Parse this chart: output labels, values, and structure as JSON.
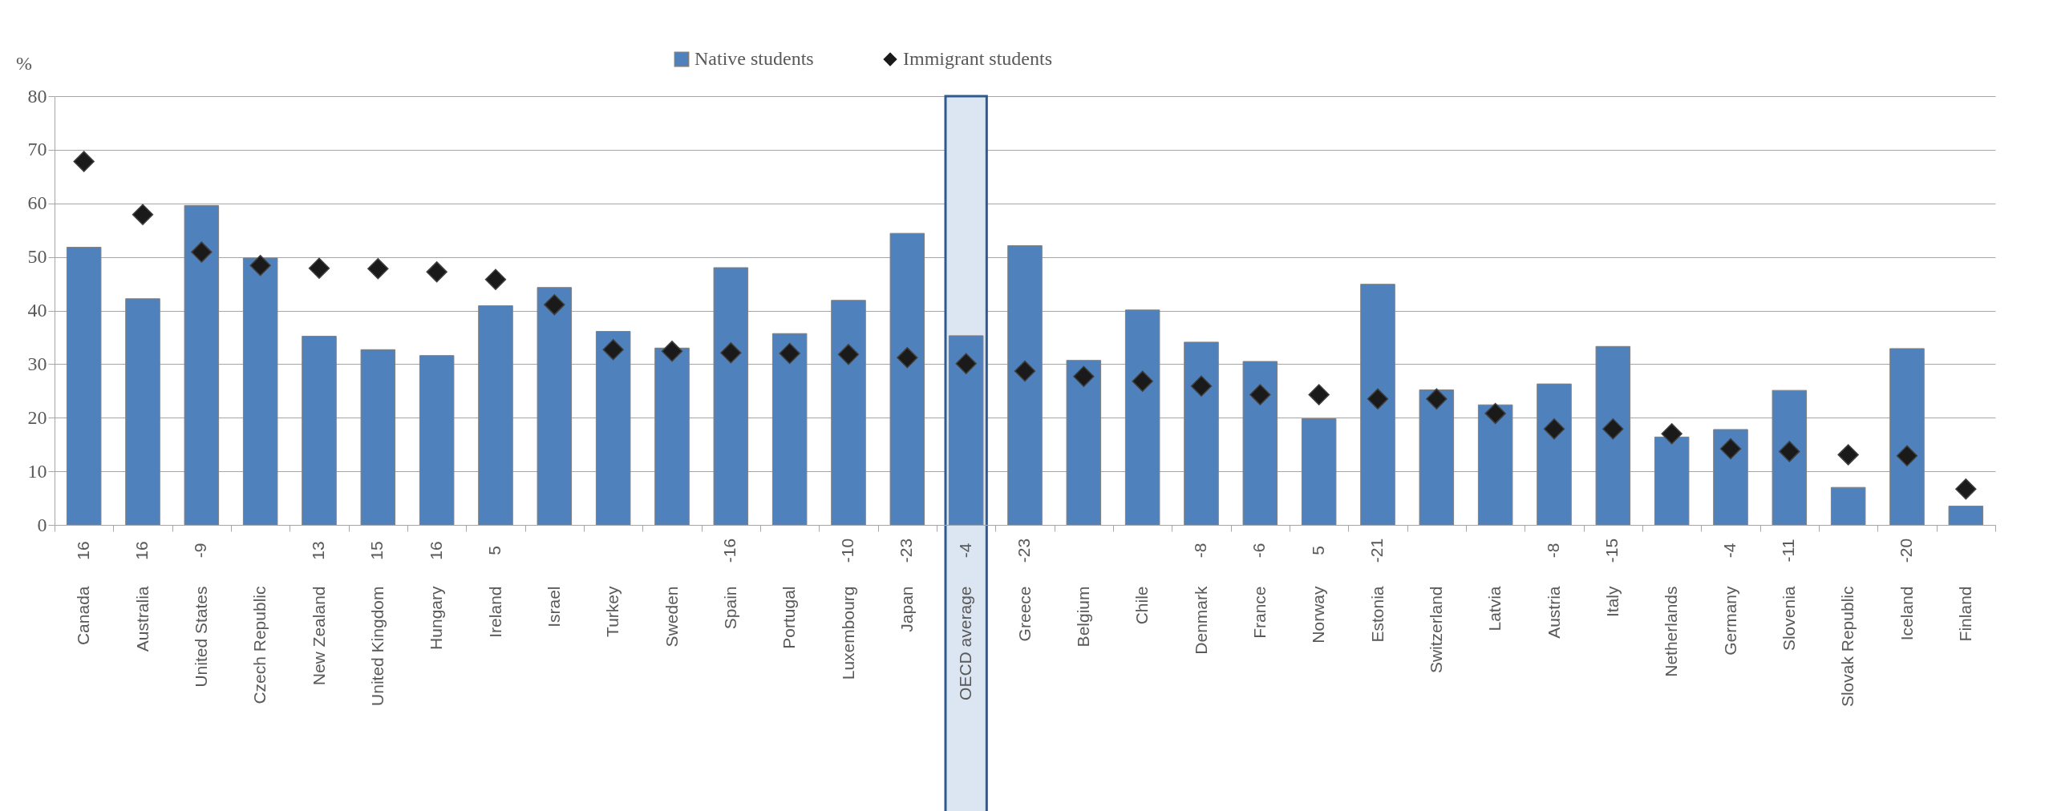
{
  "chart_data": {
    "type": "bar",
    "ylabel": "%",
    "categories": [
      "Canada",
      "Australia",
      "United States",
      "Czech Republic",
      "New Zealand",
      "United Kingdom",
      "Hungary",
      "Ireland",
      "Israel",
      "Turkey",
      "Sweden",
      "Spain",
      "Portugal",
      "Luxembourg",
      "Japan",
      "OECD average",
      "Greece",
      "Belgium",
      "Chile",
      "Denmark",
      "France",
      "Norway",
      "Estonia",
      "Switzerland",
      "Latvia",
      "Austria",
      "Italy",
      "Netherlands",
      "Germany",
      "Slovenia",
      "Slovak Republic",
      "Iceland",
      "Finland"
    ],
    "series": [
      {
        "name": "Native students",
        "color": "#4f81bd",
        "values": [
          51.8,
          42.2,
          59.6,
          49.8,
          35.2,
          32.7,
          31.6,
          40.9,
          44.3,
          36.1,
          33.0,
          48.0,
          35.7,
          41.9,
          54.4,
          35.3,
          52.1,
          30.7,
          40.1,
          34.1,
          30.5,
          19.8,
          44.9,
          25.2,
          22.4,
          26.3,
          33.3,
          16.4,
          17.8,
          25.1,
          7.0,
          32.9,
          3.5
        ]
      },
      {
        "name": "Immigrant students",
        "type": "scatter",
        "color": "#1a1a1a",
        "values": [
          67.8,
          57.9,
          50.9,
          48.4,
          47.9,
          47.8,
          47.2,
          45.8,
          41.1,
          32.7,
          32.4,
          32.1,
          32.0,
          31.8,
          31.2,
          30.1,
          28.7,
          27.7,
          26.8,
          25.9,
          24.3,
          24.3,
          23.5,
          23.5,
          20.8,
          17.9,
          17.9,
          17.0,
          14.2,
          13.7,
          13.1,
          12.9,
          6.7
        ]
      }
    ],
    "annotations": [
      "16",
      "16",
      "-9",
      null,
      "13",
      "15",
      "16",
      "5",
      null,
      null,
      null,
      "-16",
      null,
      "-10",
      "-23",
      "-4",
      "-23",
      null,
      null,
      "-8",
      "-6",
      "5",
      "-21",
      null,
      null,
      "-8",
      "-15",
      null,
      "-4",
      "-11",
      null,
      "-20",
      null
    ],
    "bands": [
      {
        "axis": "x",
        "from": "OECD average",
        "to": "OECD average",
        "color": "#dce6f2"
      }
    ],
    "ylim": [
      0,
      80
    ],
    "yticks": [
      0,
      10,
      20,
      30,
      40,
      50,
      60,
      70,
      80
    ],
    "grid": "y",
    "legend": "top",
    "marker": "diamond"
  }
}
